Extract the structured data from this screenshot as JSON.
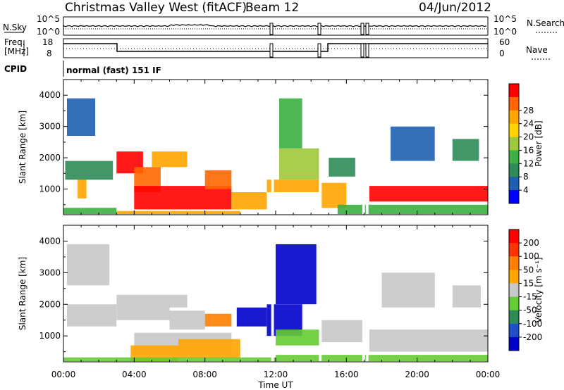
{
  "header": {
    "title": "Christmas Valley West (fitACF)",
    "beam": "Beam 12",
    "date": "04/Jun/2012"
  },
  "top_panels": {
    "nsky_label": "N.Sky",
    "nsky_ticks": [
      "10^5",
      "10^0"
    ],
    "nsearch_label": "N.Search",
    "nsearch_ticks": [
      "10^5",
      "10^0"
    ],
    "freq_label": "Freq.",
    "freq_unit": "[MHz]",
    "freq_ticks": [
      "18",
      "8"
    ],
    "nave_label": "Nave",
    "nave_ticks": [
      "60",
      "0"
    ],
    "cpid_label": "CPID",
    "cpid_value": "normal (fast) 151 IF"
  },
  "chart_data": [
    {
      "type": "heatmap",
      "title": "",
      "xlabel": "Time UT",
      "ylabel": "Slant Range [km]",
      "colorbar_label": "Power [dB]",
      "x_ticks": [
        "00:00",
        "04:00",
        "08:00",
        "12:00",
        "16:00",
        "20:00",
        "00:00"
      ],
      "y_ticks": [
        "1000",
        "2000",
        "3000",
        "4000"
      ],
      "ylim": [
        180,
        4500
      ],
      "colorbar_ticks": [
        "4",
        "8",
        "12",
        "16",
        "20",
        "24",
        "28"
      ],
      "colorbar_colors": [
        "#0000ff",
        "#1f5fb0",
        "#2e8b57",
        "#3cb043",
        "#a0c83c",
        "#ffd400",
        "#ffa500",
        "#ff6600",
        "#ff0000"
      ]
    },
    {
      "type": "heatmap",
      "title": "",
      "xlabel": "Time UT",
      "ylabel": "Slant Range [km]",
      "colorbar_label": "Velocity [m s⁻¹]",
      "x_ticks": [
        "00:00",
        "04:00",
        "08:00",
        "12:00",
        "16:00",
        "20:00",
        "00:00"
      ],
      "y_ticks": [
        "1000",
        "2000",
        "3000",
        "4000"
      ],
      "ylim": [
        180,
        4500
      ],
      "colorbar_ticks": [
        "200",
        "100",
        "50",
        "15",
        "-15",
        "-50",
        "-100",
        "-200"
      ],
      "colorbar_colors": [
        "#0000cc",
        "#1e50c8",
        "#2e8b57",
        "#66cc33",
        "#c8c8c8",
        "#ffa500",
        "#ff8000",
        "#ff3300",
        "#ff0000"
      ]
    }
  ]
}
